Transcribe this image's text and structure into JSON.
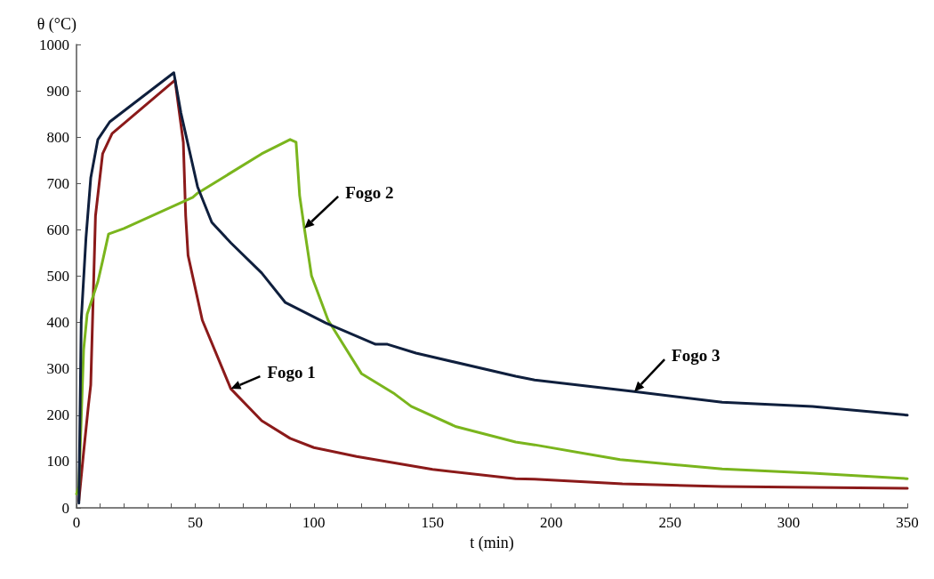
{
  "chart_data": {
    "type": "line",
    "xlabel": "t (min)",
    "ylabel": "θ (°C)",
    "xlim": [
      0,
      350
    ],
    "ylim": [
      0,
      1000
    ],
    "xticks": [
      0,
      {
        "value": 10,
        "label": null
      },
      {
        "value": 20,
        "label": null
      },
      {
        "value": 30,
        "label": null
      },
      {
        "value": 40,
        "label": null
      },
      50,
      {
        "value": 60,
        "label": null
      },
      {
        "value": 70,
        "label": null
      },
      {
        "value": 80,
        "label": null
      },
      {
        "value": 90,
        "label": null
      },
      100,
      {
        "value": 110,
        "label": null
      },
      {
        "value": 120,
        "label": null
      },
      {
        "value": 130,
        "label": null
      },
      {
        "value": 140,
        "label": null
      },
      150,
      {
        "value": 160,
        "label": null
      },
      {
        "value": 170,
        "label": null
      },
      {
        "value": 180,
        "label": null
      },
      {
        "value": 190,
        "label": null
      },
      200,
      {
        "value": 210,
        "label": null
      },
      {
        "value": 220,
        "label": null
      },
      {
        "value": 230,
        "label": null
      },
      {
        "value": 240,
        "label": null
      },
      250,
      {
        "value": 260,
        "label": null
      },
      {
        "value": 270,
        "label": null
      },
      {
        "value": 280,
        "label": null
      },
      {
        "value": 290,
        "label": null
      },
      300,
      {
        "value": 310,
        "label": null
      },
      {
        "value": 320,
        "label": null
      },
      {
        "value": 330,
        "label": null
      },
      {
        "value": 340,
        "label": null
      },
      350
    ],
    "yticks": [
      0,
      100,
      200,
      300,
      400,
      500,
      600,
      700,
      800,
      900,
      1000
    ],
    "grid": false,
    "marker": "none",
    "line_style": "solid",
    "series": [
      {
        "name": "Fogo 1",
        "color": "#8b1a1a",
        "x": [
          1,
          3,
          5,
          6,
          8,
          11,
          15,
          41.5,
          45,
          46,
          47,
          53,
          65,
          78,
          90,
          100,
          118,
          150,
          185,
          193,
          230,
          272,
          310,
          350
        ],
        "values": [
          15,
          120,
          220,
          265,
          630,
          764,
          808,
          923,
          789,
          630,
          545,
          405,
          257,
          188,
          150,
          130,
          111,
          83,
          63,
          62,
          52,
          46,
          44,
          42
        ]
      },
      {
        "name": "Fogo 2",
        "color": "#7ab51d",
        "x": [
          0,
          1,
          3,
          4.5,
          9,
          11,
          13.5,
          20,
          49,
          51,
          78,
          90,
          92.5,
          94,
          96,
          99,
          106,
          120,
          134,
          141,
          160,
          185,
          193,
          229,
          272,
          310,
          350
        ],
        "values": [
          30,
          46,
          341,
          418,
          488,
          533,
          591,
          603,
          670,
          679,
          764,
          795,
          789,
          674,
          603,
          501,
          405,
          290,
          246,
          219,
          175,
          142,
          136,
          104,
          84,
          75,
          63
        ]
      },
      {
        "name": "Fogo 3",
        "color": "#0f1f3d",
        "x": [
          1,
          2,
          4,
          6,
          9,
          14,
          41,
          44,
          51,
          57,
          65,
          78,
          88,
          105,
          126,
          131,
          143,
          185,
          193,
          235,
          272,
          310,
          350
        ],
        "values": [
          10,
          405,
          583,
          712,
          795,
          833,
          939,
          852,
          693,
          616,
          572,
          507,
          443,
          399,
          353,
          353,
          334,
          284,
          276,
          251,
          228,
          219,
          200
        ]
      }
    ]
  }
}
